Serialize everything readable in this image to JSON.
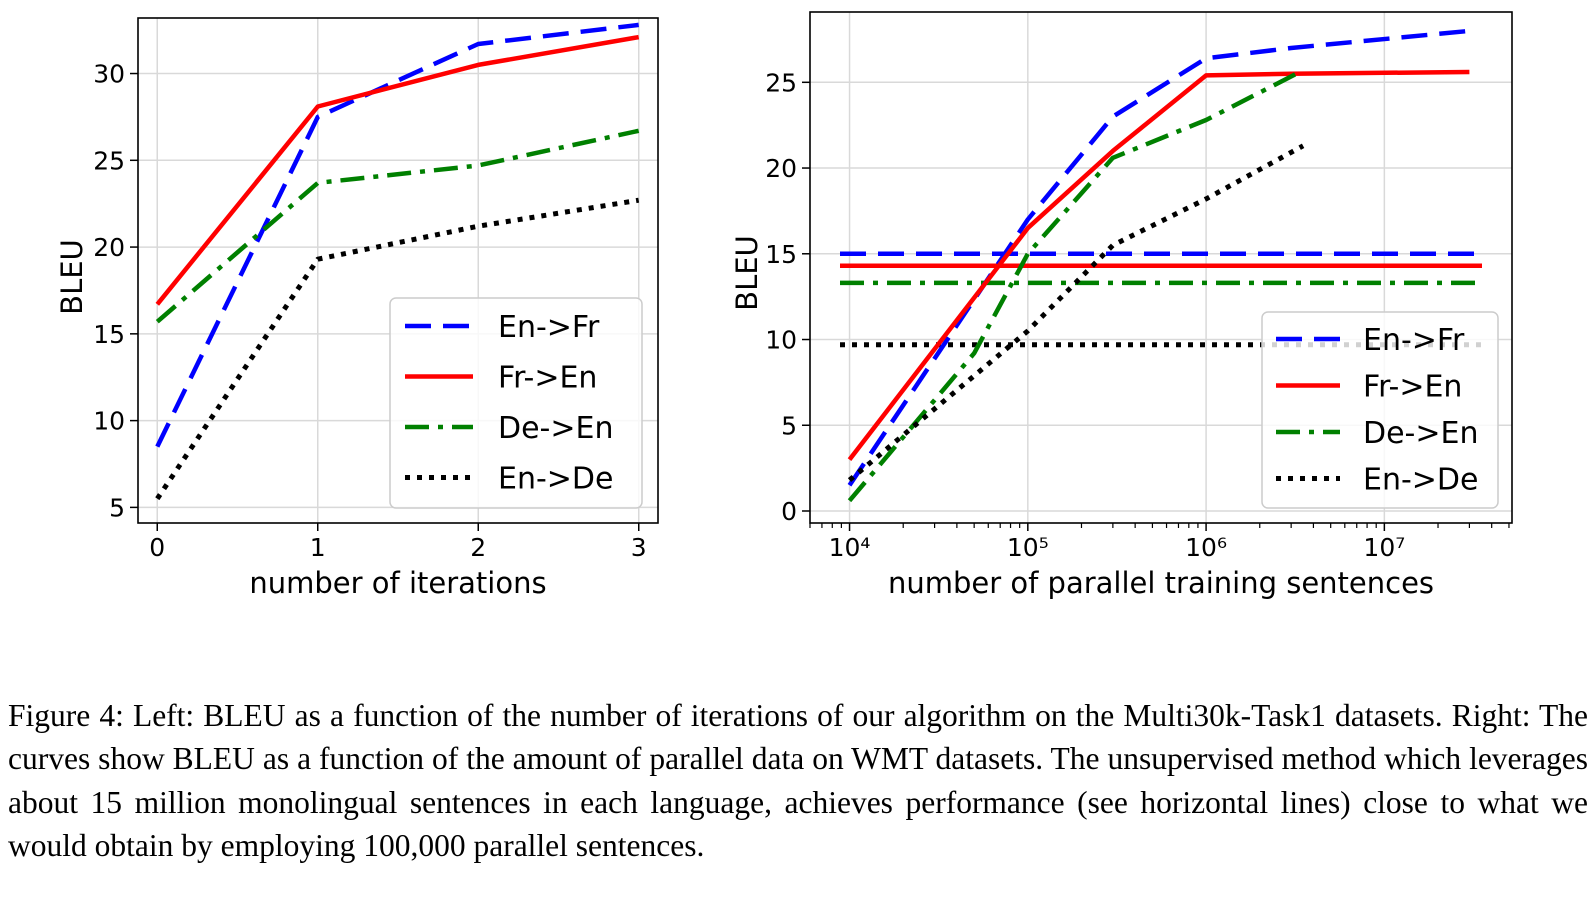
{
  "chart_data": [
    {
      "type": "line",
      "title": "",
      "xlabel": "number of iterations",
      "ylabel": "BLEU",
      "xlim": [
        -0.12,
        3.12
      ],
      "ylim": [
        4.1,
        33.2
      ],
      "x_scale": "linear",
      "xticks": [
        0,
        1,
        2,
        3
      ],
      "xtick_labels": [
        "0",
        "1",
        "2",
        "3"
      ],
      "yticks": [
        5,
        10,
        15,
        20,
        25,
        30
      ],
      "ytick_labels": [
        "5",
        "10",
        "15",
        "20",
        "25",
        "30"
      ],
      "grid": true,
      "legend_position": "lower-right",
      "series": [
        {
          "name": "En->Fr",
          "color": "#0000ff",
          "style": "dashed",
          "x": [
            0,
            1,
            2,
            3
          ],
          "y": [
            8.5,
            27.5,
            31.7,
            32.8
          ]
        },
        {
          "name": "Fr->En",
          "color": "#ff0000",
          "style": "solid",
          "x": [
            0,
            1,
            2,
            3
          ],
          "y": [
            16.7,
            28.1,
            30.5,
            32.1
          ]
        },
        {
          "name": "De->En",
          "color": "#008000",
          "style": "dashdot",
          "x": [
            0,
            1,
            2,
            3
          ],
          "y": [
            15.7,
            23.7,
            24.7,
            26.7
          ]
        },
        {
          "name": "En->De",
          "color": "#000000",
          "style": "dotted",
          "x": [
            0,
            1,
            2,
            3
          ],
          "y": [
            5.5,
            19.3,
            21.2,
            22.7
          ]
        }
      ]
    },
    {
      "type": "line",
      "title": "",
      "xlabel": "number of parallel training sentences",
      "ylabel": "BLEU",
      "xlim": [
        6000,
        52000000
      ],
      "ylim": [
        -0.7,
        29.1
      ],
      "x_scale": "log",
      "xticks": [
        10000,
        100000,
        1000000,
        10000000
      ],
      "xtick_labels": [
        "10⁴",
        "10⁵",
        "10⁶",
        "10⁷"
      ],
      "yticks": [
        0,
        5,
        10,
        15,
        20,
        25
      ],
      "ytick_labels": [
        "0",
        "5",
        "10",
        "15",
        "20",
        "25"
      ],
      "grid": true,
      "legend_position": "lower-right",
      "series": [
        {
          "name": "En->Fr",
          "color": "#0000ff",
          "style": "dashed",
          "x": [
            10000,
            100000,
            300000,
            1000000,
            3000000,
            30000000
          ],
          "y": [
            1.5,
            17,
            23,
            26.4,
            27,
            28
          ]
        },
        {
          "name": "Fr->En",
          "color": "#ff0000",
          "style": "solid",
          "x": [
            10000,
            100000,
            300000,
            1000000,
            3000000,
            30000000
          ],
          "y": [
            3,
            16.5,
            21,
            25.4,
            25.5,
            25.6
          ]
        },
        {
          "name": "De->En",
          "color": "#008000",
          "style": "dashdot",
          "x": [
            10000,
            50000,
            100000,
            300000,
            1000000,
            3500000
          ],
          "y": [
            0.6,
            9.2,
            15,
            20.6,
            22.8,
            25.7
          ]
        },
        {
          "name": "En->De",
          "color": "#000000",
          "style": "dotted",
          "x": [
            10000,
            100000,
            300000,
            1000000,
            3500000
          ],
          "y": [
            1.8,
            10.5,
            15.5,
            18.2,
            21.3
          ]
        }
      ],
      "horizontal_lines": [
        {
          "color": "#0000ff",
          "style": "dashed",
          "y": 15.0
        },
        {
          "color": "#ff0000",
          "style": "solid",
          "y": 14.3
        },
        {
          "color": "#008000",
          "style": "dashdot",
          "y": 13.3
        },
        {
          "color": "#000000",
          "style": "dotted",
          "y": 9.7
        }
      ]
    }
  ],
  "caption": "Figure 4: Left: BLEU as a function of the number of iterations of our algorithm on the Multi30k-Task1 datasets. Right: The curves show BLEU as a function of the amount of parallel data on WMT datasets. The unsupervised method which leverages about 15 million monolingual sentences in each language, achieves performance (see horizontal lines) close to what we would obtain by employing 100,000 parallel sentences."
}
